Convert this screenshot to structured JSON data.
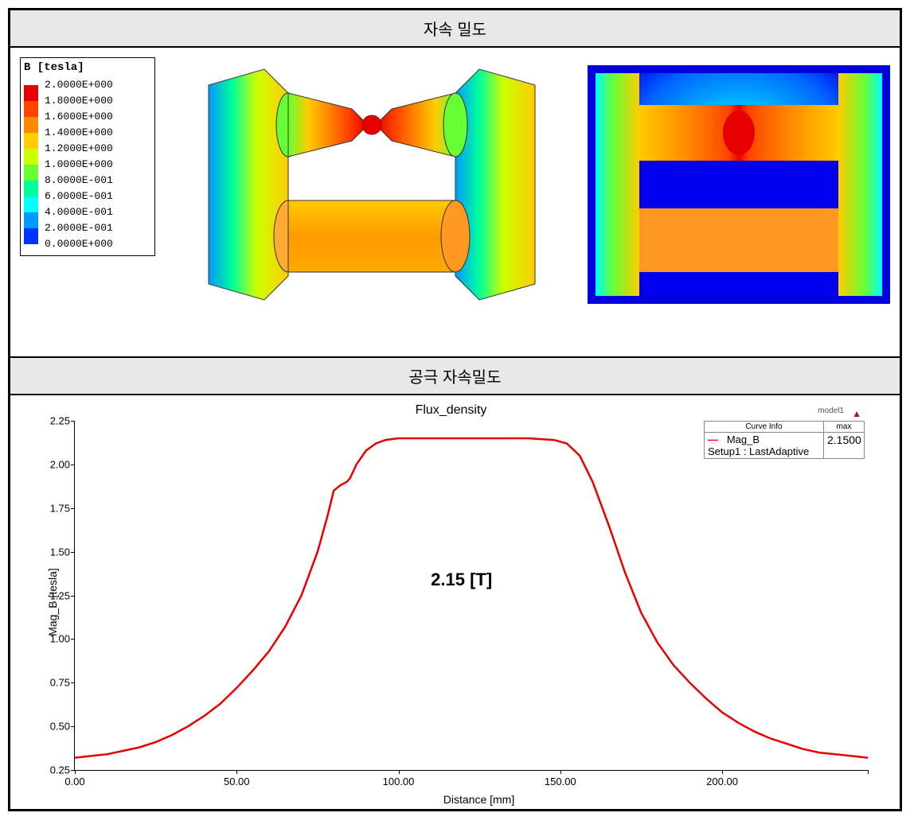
{
  "header1": "자속 밀도",
  "header2": "공극 자속밀도",
  "colorbar": {
    "title": "B [tesla]",
    "levels": [
      {
        "color": "#e60000",
        "label": "2.0000E+000"
      },
      {
        "color": "#ff4400",
        "label": "1.8000E+000"
      },
      {
        "color": "#ff8800",
        "label": "1.6000E+000"
      },
      {
        "color": "#ffcc00",
        "label": "1.4000E+000"
      },
      {
        "color": "#ccff00",
        "label": "1.2000E+000"
      },
      {
        "color": "#66ff33",
        "label": "1.0000E+000"
      },
      {
        "color": "#00ff99",
        "label": "8.0000E-001"
      },
      {
        "color": "#00ffff",
        "label": "6.0000E-001"
      },
      {
        "color": "#0099ff",
        "label": "4.0000E-001"
      },
      {
        "color": "#0033ff",
        "label": "2.0000E-001"
      },
      {
        "color": "#0000cc",
        "label": "0.0000E+000"
      }
    ]
  },
  "chart": {
    "title": "Flux_density",
    "model_label": "model1",
    "ylabel": "Mag_B [tesla]",
    "xlabel": "Distance [mm]",
    "annotation": "2.15 [T]",
    "legend": {
      "header_curve": "Curve Info",
      "header_max": "max",
      "curve_name": "Mag_B",
      "curve_setup": "Setup1 : LastAdaptive",
      "max_value": "2.1500",
      "line_color": "#e60000"
    },
    "ylim": [
      0.25,
      2.25
    ],
    "xlim": [
      0,
      245
    ],
    "yticks": [
      "0.25",
      "0.50",
      "0.75",
      "1.00",
      "1.25",
      "1.50",
      "1.75",
      "2.00",
      "2.25"
    ],
    "xticks": [
      {
        "v": 0,
        "l": "0.00"
      },
      {
        "v": 50,
        "l": "50.00"
      },
      {
        "v": 100,
        "l": "100.00"
      },
      {
        "v": 150,
        "l": "150.00"
      },
      {
        "v": 200,
        "l": "200.00"
      },
      {
        "v": 245,
        "l": ""
      }
    ],
    "line_color": "#e60000",
    "line_width": 2.5,
    "data": [
      [
        0,
        0.32
      ],
      [
        5,
        0.33
      ],
      [
        10,
        0.34
      ],
      [
        15,
        0.36
      ],
      [
        20,
        0.38
      ],
      [
        25,
        0.41
      ],
      [
        30,
        0.45
      ],
      [
        35,
        0.5
      ],
      [
        40,
        0.56
      ],
      [
        45,
        0.63
      ],
      [
        50,
        0.72
      ],
      [
        55,
        0.82
      ],
      [
        60,
        0.93
      ],
      [
        65,
        1.07
      ],
      [
        70,
        1.25
      ],
      [
        75,
        1.5
      ],
      [
        78,
        1.7
      ],
      [
        80,
        1.85
      ],
      [
        82,
        1.88
      ],
      [
        84,
        1.9
      ],
      [
        85,
        1.92
      ],
      [
        87,
        2.0
      ],
      [
        90,
        2.08
      ],
      [
        93,
        2.12
      ],
      [
        96,
        2.14
      ],
      [
        100,
        2.15
      ],
      [
        110,
        2.15
      ],
      [
        120,
        2.15
      ],
      [
        130,
        2.15
      ],
      [
        140,
        2.15
      ],
      [
        148,
        2.14
      ],
      [
        152,
        2.12
      ],
      [
        156,
        2.05
      ],
      [
        160,
        1.9
      ],
      [
        165,
        1.65
      ],
      [
        170,
        1.38
      ],
      [
        175,
        1.15
      ],
      [
        180,
        0.98
      ],
      [
        185,
        0.85
      ],
      [
        190,
        0.75
      ],
      [
        195,
        0.66
      ],
      [
        200,
        0.58
      ],
      [
        205,
        0.52
      ],
      [
        210,
        0.47
      ],
      [
        215,
        0.43
      ],
      [
        220,
        0.4
      ],
      [
        225,
        0.37
      ],
      [
        230,
        0.35
      ],
      [
        235,
        0.34
      ],
      [
        240,
        0.33
      ],
      [
        245,
        0.32
      ]
    ]
  },
  "sim3d": {
    "background": "#ffffff"
  },
  "sim2d": {
    "background": "#0000ff"
  }
}
